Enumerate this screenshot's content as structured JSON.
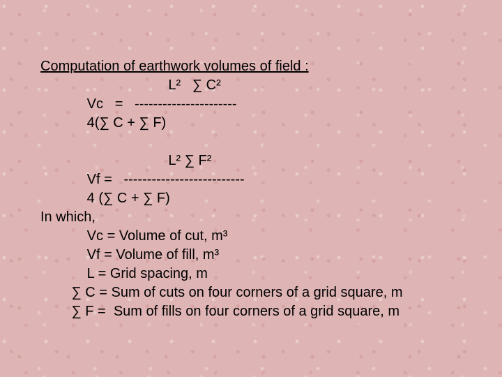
{
  "colors": {
    "background": "#dfb4b4",
    "text": "#000000"
  },
  "typography": {
    "font_family": "Arial",
    "font_size_pt": 20,
    "line_height": 1.35
  },
  "title": "Computation of earthwork volumes of field :",
  "formula_vc": {
    "numerator": "                                 L²   ∑ C²",
    "middle": "            Vc   =   ----------------------",
    "denom": "            4(∑ C + ∑ F)"
  },
  "formula_vf": {
    "numerator": "                                 L² ∑ F²",
    "middle": "            Vf =   --------------------------",
    "denom": "            4 (∑ C + ∑ F)"
  },
  "in_which_label": "In which,",
  "defs": {
    "vc": "            Vc = Volume of cut, m³",
    "vf": "            Vf = Volume of fill, m³",
    "l": "            L = Grid spacing, m",
    "sc": "        ∑ C = Sum of cuts on four corners of a grid square, m",
    "sf": "        ∑ F =  Sum of fills on four corners of a grid square, m"
  }
}
